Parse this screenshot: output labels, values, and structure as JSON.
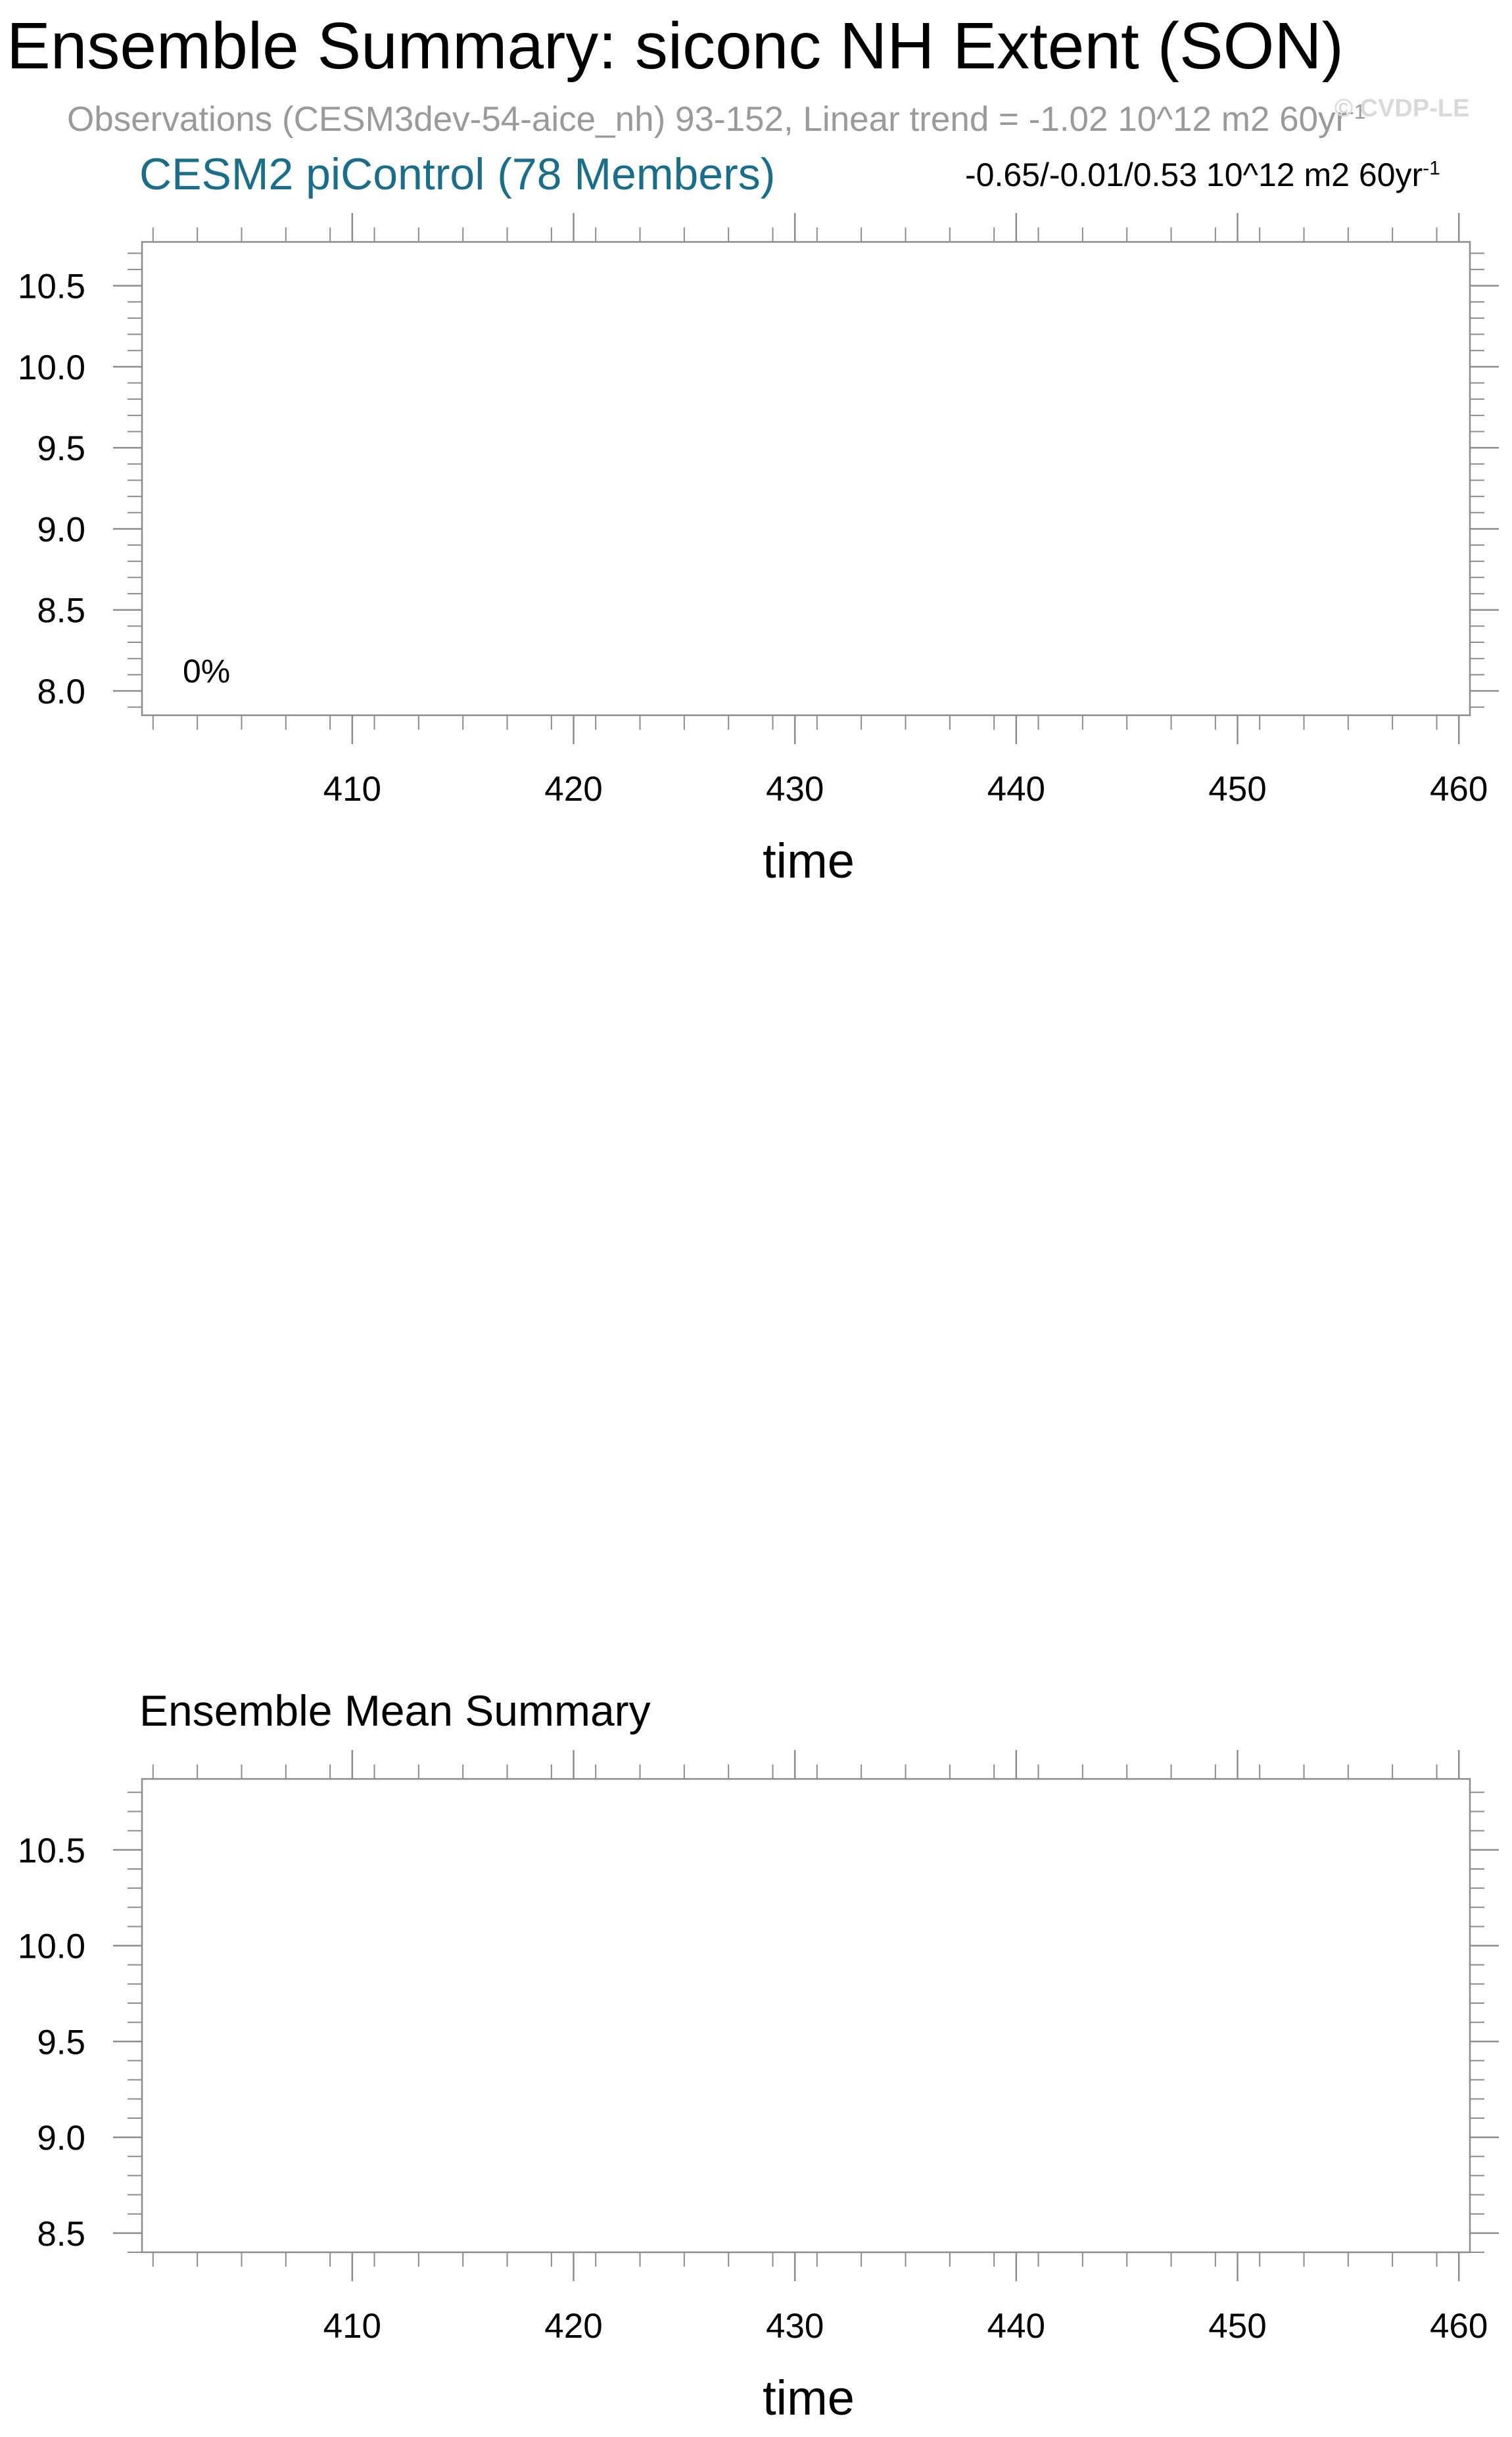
{
  "header": {
    "title": "Ensemble Summary: siconc NH Extent (SON)",
    "observations_prefix": "Observations (CESM3dev-54-aice_nh) 93-152, Linear trend = -1.02 10^12 m2 60yr",
    "observations_sup": "-1",
    "watermark": "© CVDP-LE"
  },
  "chart_data": [
    {
      "type": "line",
      "title": "CESM2 piControl (78 Members)",
      "stats_prefix": "-0.65/-0.01/0.53 10^12 m2 60yr",
      "stats_sup": "-1",
      "annotation": "0%",
      "xlabel": "time",
      "ylabel": "",
      "xlim": [
        400.5,
        460.5
      ],
      "ylim": [
        7.85,
        10.77
      ],
      "x_ticks": [
        410,
        420,
        430,
        440,
        450,
        460
      ],
      "x_tick_labels": [
        "410",
        "420",
        "430",
        "440",
        "450",
        "460"
      ],
      "y_ticks": [
        8.0,
        8.5,
        9.0,
        9.5,
        10.0,
        10.5
      ],
      "y_tick_labels": [
        "8.0",
        "8.5",
        "9.0",
        "9.5",
        "10.0",
        "10.5"
      ],
      "series": []
    },
    {
      "type": "line",
      "title": "Ensemble Mean Summary",
      "xlabel": "time",
      "ylabel": "",
      "xlim": [
        400.5,
        460.5
      ],
      "ylim": [
        8.4,
        10.87
      ],
      "x_ticks": [
        410,
        420,
        430,
        440,
        450,
        460
      ],
      "x_tick_labels": [
        "410",
        "420",
        "430",
        "440",
        "450",
        "460"
      ],
      "y_ticks": [
        8.5,
        9.0,
        9.5,
        10.0,
        10.5
      ],
      "y_tick_labels": [
        "8.5",
        "9.0",
        "9.5",
        "10.0",
        "10.5"
      ],
      "series": []
    }
  ]
}
